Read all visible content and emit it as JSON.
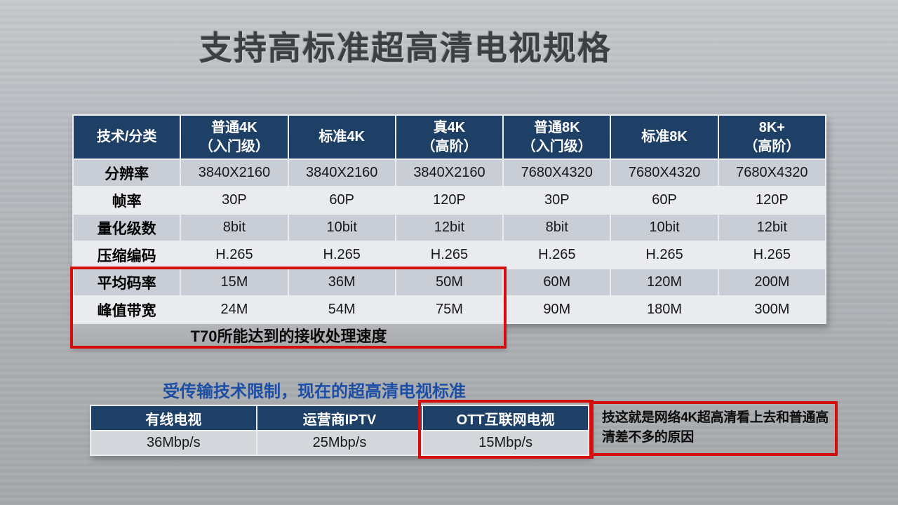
{
  "title": "支持高标准超高清电视规格",
  "colors": {
    "header_navy": "#1e3f66",
    "highlight_red": "#d40d0d",
    "row_dark": "#c9cdd5",
    "row_light": "#e9ebef",
    "subtitle_blue": "#1c4ea6"
  },
  "main_table": {
    "header": [
      {
        "line1": "技术/分类",
        "line2": ""
      },
      {
        "line1": "普通4K",
        "line2": "（入门级）"
      },
      {
        "line1": "标准4K",
        "line2": ""
      },
      {
        "line1": "真4K",
        "line2": "（高阶）"
      },
      {
        "line1": "普通8K",
        "line2": "（入门级）"
      },
      {
        "line1": "标准8K",
        "line2": ""
      },
      {
        "line1": "8K+",
        "line2": "（高阶）"
      }
    ],
    "rows": [
      {
        "label": "分辨率",
        "values": [
          "3840X2160",
          "3840X2160",
          "3840X2160",
          "7680X4320",
          "7680X4320",
          "7680X4320"
        ]
      },
      {
        "label": "帧率",
        "values": [
          "30P",
          "60P",
          "120P",
          "30P",
          "60P",
          "120P"
        ]
      },
      {
        "label": "量化级数",
        "values": [
          "8bit",
          "10bit",
          "12bit",
          "8bit",
          "10bit",
          "12bit"
        ]
      },
      {
        "label": "压缩编码",
        "values": [
          "H.265",
          "H.265",
          "H.265",
          "H.265",
          "H.265",
          "H.265"
        ]
      },
      {
        "label": "平均码率",
        "values": [
          "15M",
          "36M",
          "50M",
          "60M",
          "120M",
          "200M"
        ]
      },
      {
        "label": "峰值带宽",
        "values": [
          "24M",
          "54M",
          "75M",
          "90M",
          "180M",
          "300M"
        ]
      }
    ],
    "span_note": "T70所能达到的接收处理速度"
  },
  "subtitle": "受传输技术限制，现在的超高清电视标准",
  "bandwidth_table": {
    "header": [
      "有线电视",
      "运营商IPTV",
      "OTT互联网电视"
    ],
    "values": [
      "36Mbp/s",
      "25Mbp/s",
      "15Mbp/s"
    ]
  },
  "annotation": "技这就是网络4K超高清看上去和普通高清差不多的原因"
}
